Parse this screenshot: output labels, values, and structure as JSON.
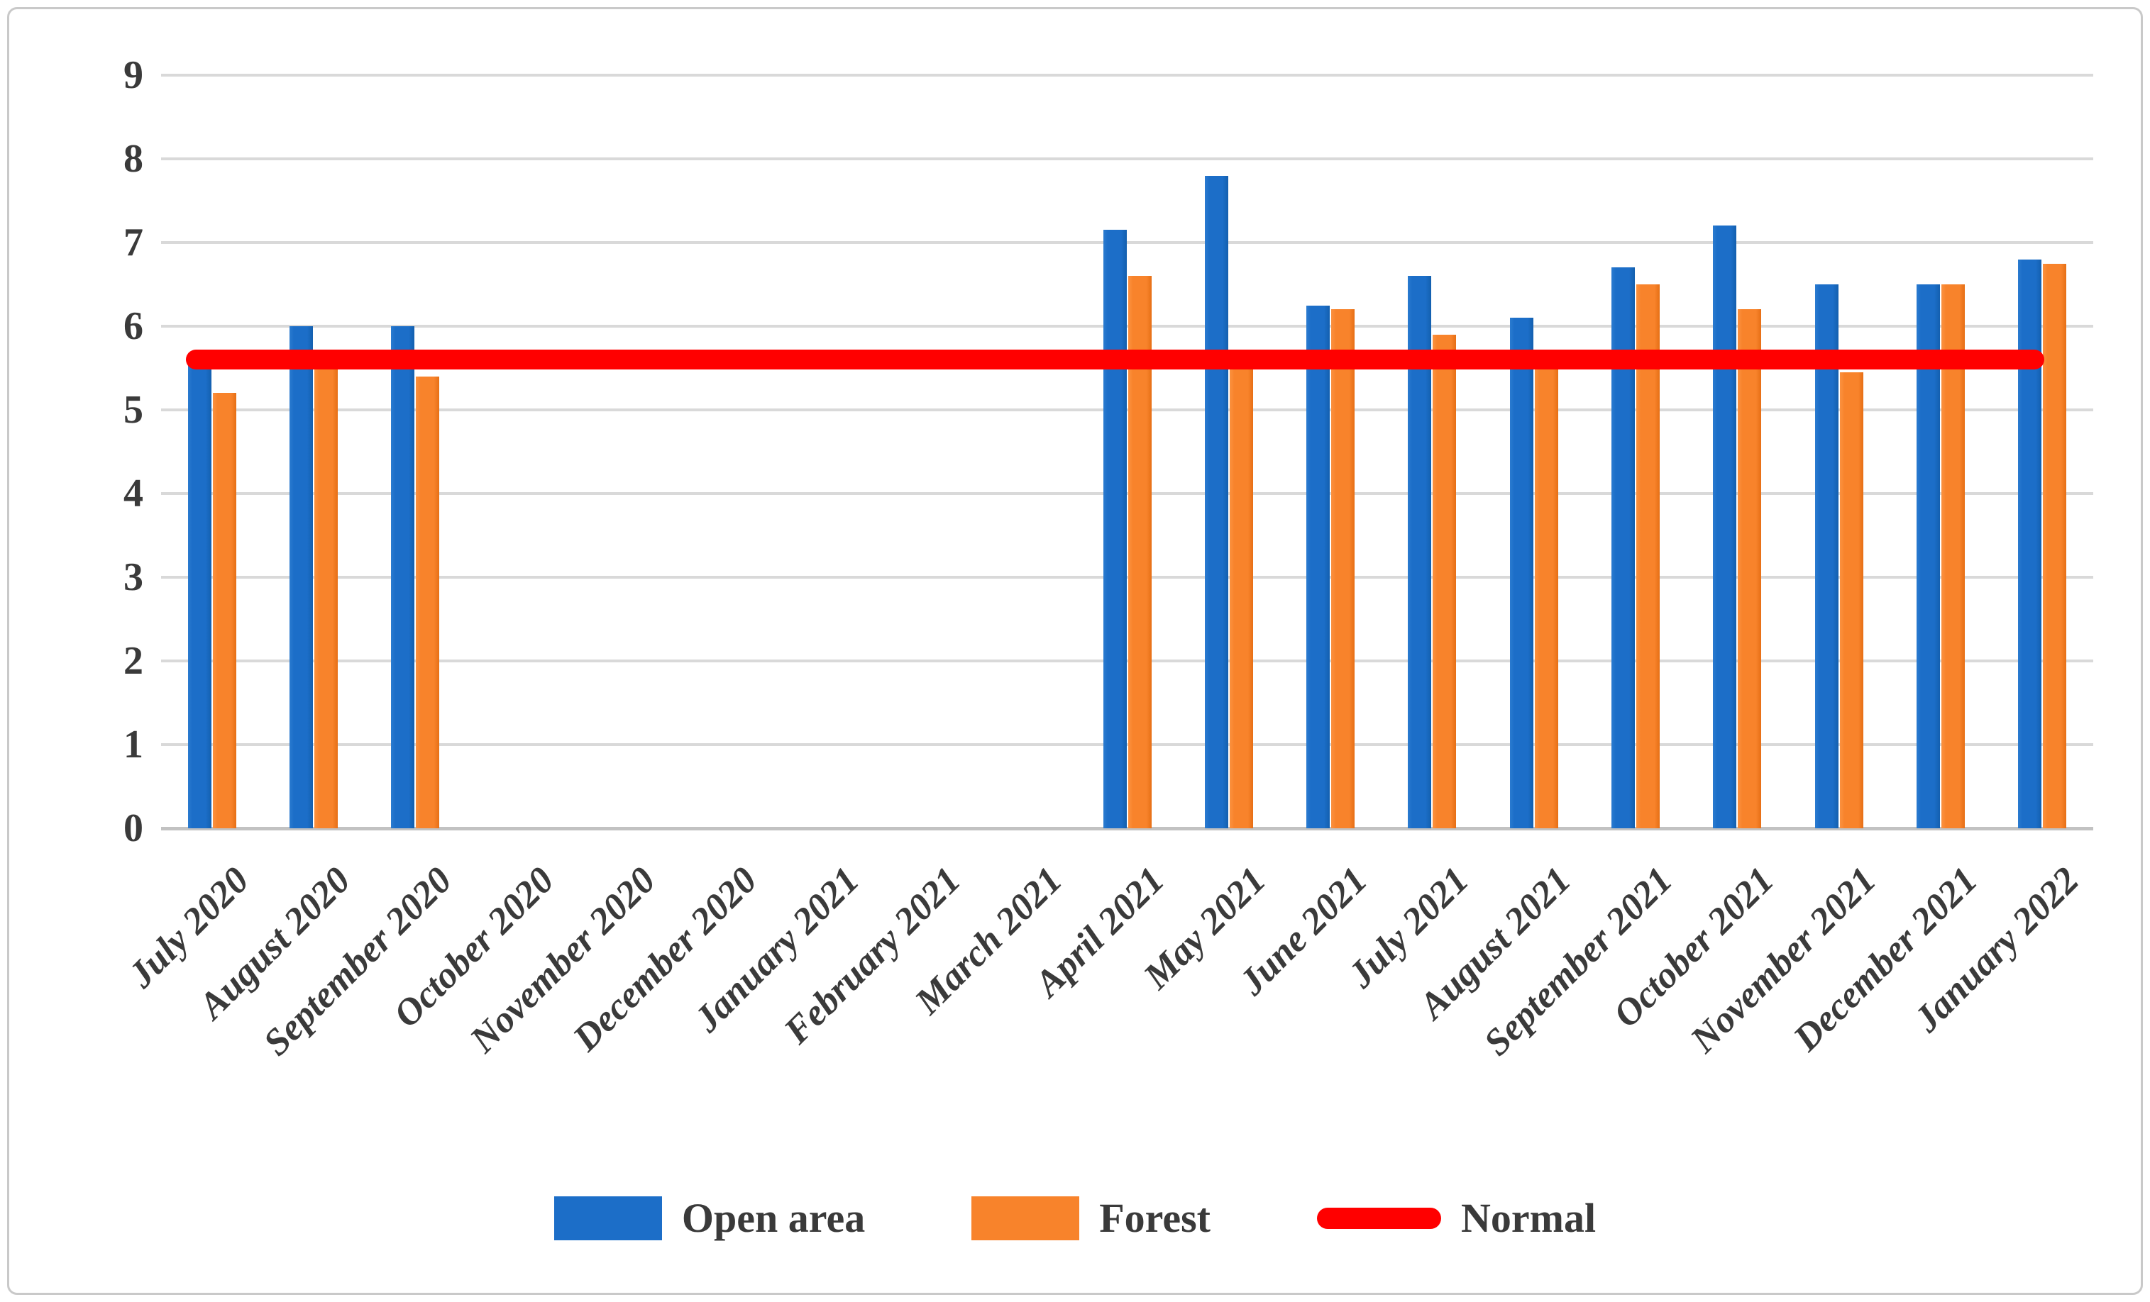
{
  "figure": {
    "background": "#ffffff",
    "border_color": "#c9c9c9"
  },
  "chart_data": {
    "type": "bar",
    "title": "",
    "xlabel": "",
    "ylabel": "",
    "categories": [
      "July 2020",
      "August 2020",
      "September 2020",
      "October 2020",
      "November 2020",
      "December 2020",
      "January 2021",
      "February 2021",
      "March 2021",
      "April 2021",
      "May 2021",
      "June 2021",
      "July 2021",
      "August 2021",
      "September 2021",
      "October 2021",
      "November 2021",
      "December 2021",
      "January 2022"
    ],
    "series": [
      {
        "name": "Open area",
        "type": "bar",
        "color": "#1C6EC8",
        "values": [
          5.55,
          6.0,
          6.0,
          null,
          null,
          null,
          null,
          null,
          null,
          7.15,
          7.8,
          6.25,
          6.6,
          6.1,
          6.7,
          7.2,
          6.5,
          6.5,
          6.8
        ]
      },
      {
        "name": "Forest",
        "type": "bar",
        "color": "#F8832B",
        "values": [
          5.2,
          5.5,
          5.4,
          null,
          null,
          null,
          null,
          null,
          null,
          6.6,
          5.5,
          6.2,
          5.9,
          5.5,
          6.5,
          6.2,
          5.45,
          6.5,
          6.75
        ]
      },
      {
        "name": "Normal",
        "type": "line",
        "color": "#FF0000",
        "constant_value": 5.6
      }
    ],
    "ylim": [
      0,
      9
    ],
    "yticks": [
      "0",
      "1",
      "2",
      "3",
      "4",
      "5",
      "6",
      "7",
      "8",
      "9"
    ],
    "grid": true,
    "gridline_color": "#D9D9D9",
    "axis_line_color": "#C2C2C2",
    "tick_label_color": "#3A3A3A",
    "legend_position": "bottom"
  }
}
